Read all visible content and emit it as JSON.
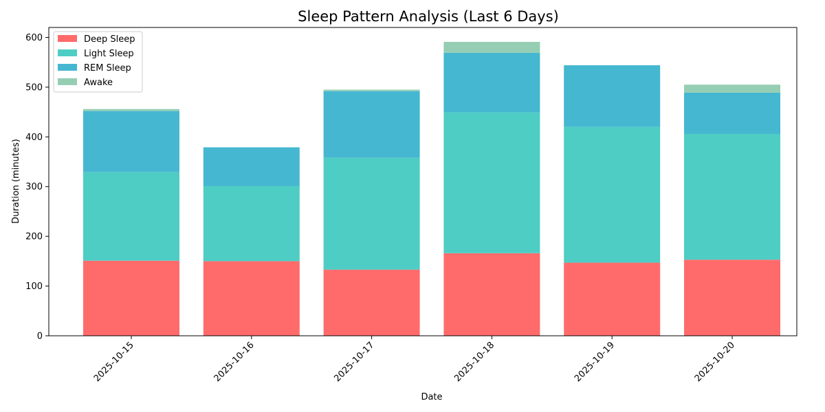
{
  "chart_data": {
    "type": "bar",
    "stacked": true,
    "title": "Sleep Pattern Analysis (Last 6 Days)",
    "xlabel": "Date",
    "ylabel": "Duration (minutes)",
    "ylim": [
      0,
      620
    ],
    "yticks": [
      0,
      100,
      200,
      300,
      400,
      500,
      600
    ],
    "grid": false,
    "legend_position": "top-left",
    "categories": [
      "2025-10-15",
      "2025-10-16",
      "2025-10-17",
      "2025-10-18",
      "2025-10-19",
      "2025-10-20"
    ],
    "series": [
      {
        "name": "Deep Sleep",
        "color": "#ff6b6b",
        "values": [
          151,
          150,
          133,
          166,
          147,
          153
        ]
      },
      {
        "name": "Light Sleep",
        "color": "#4ecdc4",
        "values": [
          178,
          151,
          225,
          283,
          273,
          253
        ]
      },
      {
        "name": "REM Sleep",
        "color": "#45b7d1",
        "values": [
          123,
          78,
          134,
          120,
          124,
          83
        ]
      },
      {
        "name": "Awake",
        "color": "#96ceb4",
        "values": [
          4,
          0,
          3,
          22,
          0,
          16
        ]
      }
    ]
  }
}
